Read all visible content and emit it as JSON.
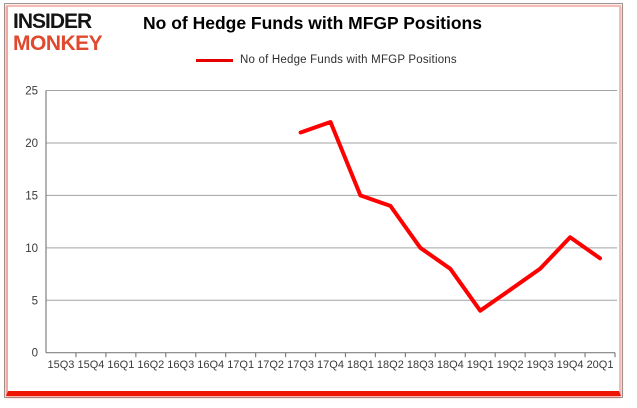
{
  "logo": {
    "line1": "INSIDER",
    "line2": "MONKEY",
    "line1_color": "#141414",
    "line2_color": "#e0492d"
  },
  "header": {
    "title": "No of Hedge Funds with MFGP Positions"
  },
  "legend": {
    "label": "No of Hedge Funds with MFGP Positions",
    "line_color": "#e60000"
  },
  "frame": {
    "border_gray": "#9a9a9a",
    "border_pink": "#f3bdb6",
    "border_red_bottom": "#ee1505"
  },
  "chart_data": {
    "type": "line",
    "title": "No of Hedge Funds with MFGP Positions",
    "categories": [
      "15Q3",
      "15Q4",
      "16Q1",
      "16Q2",
      "16Q3",
      "16Q4",
      "17Q1",
      "17Q2",
      "17Q3",
      "17Q4",
      "18Q1",
      "18Q2",
      "18Q3",
      "18Q4",
      "19Q1",
      "19Q2",
      "19Q3",
      "19Q4",
      "20Q1"
    ],
    "series": [
      {
        "name": "No of Hedge Funds with MFGP Positions",
        "color": "#ff0000",
        "values": [
          null,
          null,
          null,
          null,
          null,
          null,
          null,
          null,
          21,
          22,
          15,
          14,
          10,
          8,
          4,
          6,
          8,
          11,
          9
        ]
      }
    ],
    "xlabel": "",
    "ylabel": "",
    "ylim": [
      0,
      25
    ],
    "yticks": [
      0,
      5,
      10,
      15,
      20,
      25
    ],
    "grid": "horizontal",
    "gridline_color": "#a3a3a3",
    "axis_color": "#808080",
    "tick_label_color": "#3a3a3a",
    "legend_position": "top"
  }
}
